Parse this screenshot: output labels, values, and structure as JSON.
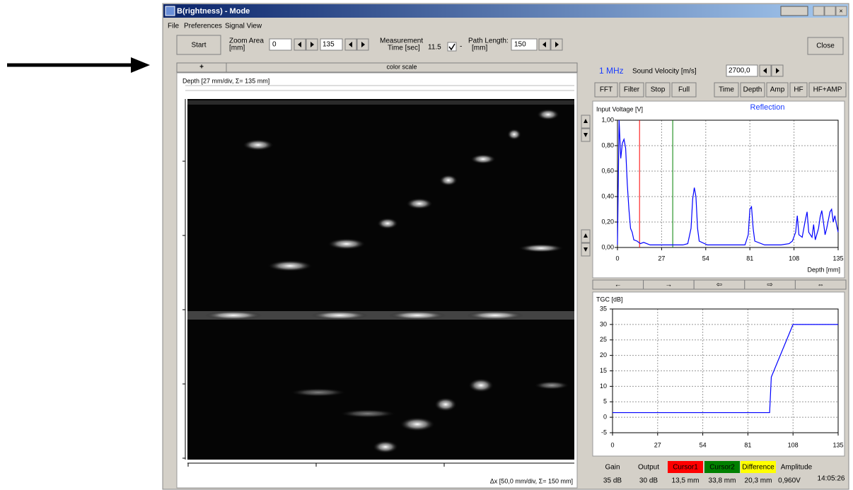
{
  "window": {
    "title": "B(rightness) - Mode",
    "menu": [
      "File",
      "Preferences",
      "Signal View"
    ]
  },
  "toolbar": {
    "start": "Start",
    "zoom_label": [
      "Zoom Area",
      "[mm]"
    ],
    "zoom_from": "0",
    "zoom_to": "135",
    "measurement_label": [
      "Measurement",
      "Time [sec]"
    ],
    "measurement_time": "11.5",
    "dash": "-",
    "path_label": [
      "Path Length:",
      "[mm]"
    ],
    "path_length": "150",
    "close": "Close"
  },
  "bscan": {
    "plus": "+",
    "color_scale": "color scale",
    "depth_label": "Depth   [27 mm/div, Σ= 135 mm]",
    "dx_label": "Δx  [50,0 mm/div, Σ= 150 mm]"
  },
  "controls": {
    "frequency": "1 MHz",
    "velocity_label": "Sound Velocity [m/s]",
    "velocity": "2700,0",
    "buttons": [
      "FFT",
      "Filter",
      "Stop",
      "Full",
      "Time",
      "Depth",
      "Amp",
      "HF",
      "HF+AMP"
    ],
    "nav_buttons": [
      "←",
      "→",
      "⇦",
      "⇨",
      "⇔"
    ]
  },
  "signal_chart": {
    "type": "line",
    "y_label": "Input Voltage [V]",
    "annotation": "Reflection",
    "x_label": "Depth [mm]",
    "x": [
      0,
      1,
      2,
      3,
      4,
      5,
      6,
      7,
      8,
      9,
      10,
      12,
      14,
      16,
      20,
      25,
      30,
      35,
      40,
      43,
      45,
      46,
      47,
      48,
      49,
      50,
      55,
      60,
      70,
      78,
      80,
      81,
      82,
      83,
      84,
      90,
      100,
      105,
      107,
      109,
      110,
      111,
      113,
      115,
      116,
      117,
      119,
      120,
      121,
      123,
      124,
      125,
      126,
      127,
      128,
      130,
      131,
      132,
      133,
      134,
      135
    ],
    "series": [
      {
        "color": "#0000ff",
        "values": [
          0.02,
          1.0,
          0.7,
          0.82,
          0.85,
          0.78,
          0.5,
          0.3,
          0.15,
          0.12,
          0.06,
          0.05,
          0.03,
          0.04,
          0.02,
          0.02,
          0.02,
          0.02,
          0.02,
          0.03,
          0.15,
          0.38,
          0.47,
          0.4,
          0.15,
          0.05,
          0.02,
          0.02,
          0.02,
          0.02,
          0.1,
          0.3,
          0.32,
          0.15,
          0.05,
          0.02,
          0.02,
          0.03,
          0.05,
          0.12,
          0.25,
          0.1,
          0.08,
          0.22,
          0.28,
          0.12,
          0.08,
          0.18,
          0.06,
          0.15,
          0.24,
          0.29,
          0.2,
          0.1,
          0.15,
          0.28,
          0.3,
          0.2,
          0.25,
          0.18,
          0.12
        ]
      }
    ],
    "cursors": [
      {
        "color": "#ff0000",
        "value": 13.5
      },
      {
        "color": "#008000",
        "value": 33.8
      }
    ],
    "xlim": [
      0,
      135
    ],
    "ylim": [
      0,
      1
    ],
    "xticks": [
      0,
      27,
      54,
      81,
      108,
      135
    ],
    "yticks": [
      {
        "value": 0,
        "label": "0,00"
      },
      {
        "value": 0.2,
        "label": "0,20"
      },
      {
        "value": 0.4,
        "label": "0,40"
      },
      {
        "value": 0.6,
        "label": "0,60"
      },
      {
        "value": 0.8,
        "label": "0,80"
      },
      {
        "value": 1,
        "label": "1,00"
      }
    ],
    "grid": true
  },
  "tgc_chart": {
    "type": "line",
    "y_label": "TGC [dB]",
    "x": [
      0,
      94,
      95,
      108,
      135
    ],
    "series": [
      {
        "color": "#0000ff",
        "values": [
          1.5,
          1.5,
          13,
          30,
          30
        ]
      }
    ],
    "xlim": [
      0,
      135
    ],
    "ylim": [
      -5,
      35
    ],
    "xticks": [
      0,
      27,
      54,
      81,
      108,
      135
    ],
    "yticks": [
      -5,
      0,
      5,
      10,
      15,
      20,
      25,
      30,
      35
    ],
    "grid": true
  },
  "status": {
    "gain": {
      "label": "Gain",
      "value": "35 dB"
    },
    "output": {
      "label": "Output",
      "value": "30 dB"
    },
    "cursor1": {
      "label": "Cursor1",
      "value": "13,5 mm"
    },
    "cursor2": {
      "label": "Cursor2",
      "value": "33,8 mm"
    },
    "difference": {
      "label": "Difference",
      "value": "20,3 mm"
    },
    "amplitude": {
      "label": "Amplitude",
      "value": "0,960V"
    },
    "time": "14:05:26"
  }
}
